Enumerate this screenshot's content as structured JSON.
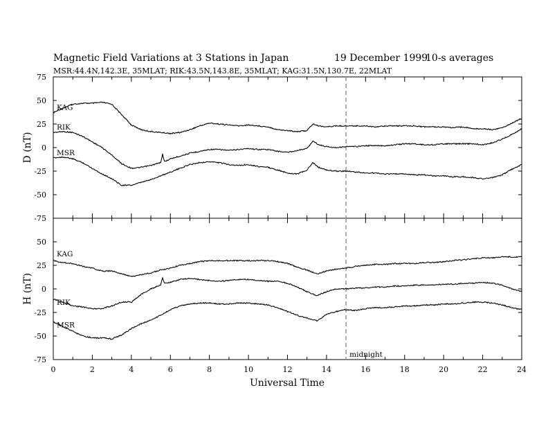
{
  "header": {
    "title": "Magnetic Field Variations at 3 Stations in Japan",
    "date": "19  December 1999",
    "averages": "10-s averages",
    "stations_line": "MSR:44.4N,142.3E, 35MLAT;   RIK:43.5N,143.8E, 35MLAT;   KAG:31.5N,130.7E, 22MLAT"
  },
  "chart_data": [
    {
      "type": "line",
      "panel": "D",
      "ylabel": "D  (nT)",
      "ylim": [
        -75,
        75
      ],
      "yticks": [
        -75,
        -50,
        -25,
        0,
        25,
        50,
        75
      ],
      "xlim": [
        0,
        24
      ],
      "grid": false,
      "series": [
        {
          "name": "KAG",
          "x": [
            0,
            0.5,
            1,
            1.5,
            2,
            2.5,
            3,
            3.5,
            4,
            4.5,
            5,
            5.5,
            6,
            6.5,
            7,
            7.5,
            8,
            8.5,
            9,
            9.5,
            10,
            10.5,
            11,
            11.5,
            12,
            12.5,
            13,
            13.3,
            13.6,
            14,
            14.5,
            15,
            15.5,
            16,
            16.5,
            17,
            17.5,
            18,
            18.5,
            19,
            19.5,
            20,
            20.5,
            21,
            21.5,
            22,
            22.5,
            23,
            23.5,
            24
          ],
          "y": [
            37,
            42,
            46,
            47,
            47,
            48,
            46,
            35,
            24,
            19,
            17,
            16,
            15,
            16,
            19,
            23,
            26,
            25,
            24,
            23,
            24,
            23,
            22,
            19,
            18,
            17,
            18,
            25,
            23,
            22,
            23,
            23,
            23,
            23,
            22,
            23,
            23,
            23,
            23,
            22,
            22,
            22,
            21,
            22,
            20,
            20,
            19,
            21,
            26,
            31
          ]
        },
        {
          "name": "RIK",
          "x": [
            0,
            0.5,
            1,
            1.5,
            2,
            2.5,
            3,
            3.5,
            4,
            4.5,
            5,
            5.5,
            5.6,
            5.7,
            6,
            6.5,
            7,
            7.5,
            8,
            8.5,
            9,
            9.5,
            10,
            10.5,
            11,
            11.5,
            12,
            12.5,
            13,
            13.3,
            13.6,
            14,
            14.5,
            15,
            15.5,
            16,
            16.5,
            17,
            17.5,
            18,
            18.5,
            19,
            19.5,
            20,
            20.5,
            21,
            21.5,
            22,
            22.5,
            23,
            23.5,
            24
          ],
          "y": [
            16,
            17,
            16,
            12,
            6,
            0,
            -8,
            -17,
            -22,
            -21,
            -19,
            -16,
            -7,
            -15,
            -12,
            -9,
            -6,
            -4,
            -2,
            -2,
            -3,
            -2,
            -1,
            -2,
            -2,
            -4,
            -5,
            -3,
            -1,
            7,
            3,
            1,
            0,
            1,
            1,
            2,
            2,
            2,
            3,
            4,
            4,
            3,
            3,
            4,
            4,
            4,
            4,
            3,
            5,
            9,
            14,
            20
          ]
        },
        {
          "name": "MSR",
          "x": [
            0,
            0.5,
            1,
            1.5,
            2,
            2.5,
            3,
            3.5,
            4,
            4.5,
            5,
            5.5,
            6,
            6.5,
            7,
            7.5,
            8,
            8.5,
            9,
            9.5,
            10,
            10.5,
            11,
            11.5,
            12,
            12.5,
            13,
            13.3,
            13.6,
            14,
            14.5,
            15,
            15.5,
            16,
            16.5,
            17,
            17.5,
            18,
            18.5,
            19,
            19.5,
            20,
            20.5,
            21,
            21.5,
            22,
            22.5,
            23,
            23.5,
            24
          ],
          "y": [
            -11,
            -10,
            -12,
            -16,
            -22,
            -28,
            -33,
            -40,
            -40,
            -37,
            -34,
            -30,
            -26,
            -22,
            -18,
            -16,
            -15,
            -16,
            -18,
            -19,
            -18,
            -20,
            -21,
            -24,
            -27,
            -28,
            -24,
            -16,
            -21,
            -24,
            -25,
            -25,
            -26,
            -27,
            -27,
            -28,
            -28,
            -28,
            -29,
            -29,
            -30,
            -30,
            -31,
            -31,
            -32,
            -33,
            -32,
            -29,
            -23,
            -18
          ]
        }
      ],
      "annotations": []
    },
    {
      "type": "line",
      "panel": "H",
      "ylabel": "H  (nT)",
      "xlabel": "Universal Time",
      "ylim": [
        -75,
        75
      ],
      "yticks": [
        -75,
        -50,
        -25,
        0,
        25,
        50,
        75
      ],
      "xlim": [
        0,
        24
      ],
      "xticks": [
        0,
        2,
        4,
        6,
        8,
        10,
        12,
        14,
        16,
        18,
        20,
        22,
        24
      ],
      "grid": false,
      "series": [
        {
          "name": "KAG",
          "x": [
            0,
            0.5,
            1,
            1.5,
            2,
            2.5,
            3,
            3.5,
            4,
            4.5,
            5,
            5.5,
            6,
            6.5,
            7,
            7.5,
            8,
            8.5,
            9,
            9.5,
            10,
            10.5,
            11,
            11.5,
            12,
            12.5,
            13,
            13.5,
            14,
            14.5,
            15,
            15.5,
            16,
            16.5,
            17,
            17.5,
            18,
            18.5,
            19,
            19.5,
            20,
            20.5,
            21,
            21.5,
            22,
            22.5,
            23,
            23.5,
            24
          ],
          "y": [
            30,
            28,
            27,
            24,
            22,
            19,
            19,
            16,
            13,
            15,
            17,
            20,
            22,
            25,
            27,
            29,
            30,
            30,
            30,
            30,
            30,
            30,
            30,
            29,
            27,
            23,
            20,
            16,
            19,
            21,
            22,
            24,
            25,
            26,
            26,
            27,
            27,
            27,
            28,
            28,
            29,
            30,
            31,
            32,
            33,
            33,
            34,
            34,
            34
          ]
        },
        {
          "name": "RIK",
          "x": [
            0,
            0.5,
            1,
            1.5,
            2,
            2.5,
            3,
            3.5,
            4,
            4.5,
            5,
            5.5,
            5.6,
            5.7,
            6,
            6.5,
            7,
            7.5,
            8,
            8.5,
            9,
            9.5,
            10,
            10.5,
            11,
            11.5,
            12,
            12.5,
            13,
            13.5,
            14,
            14.5,
            15,
            15.5,
            16,
            16.5,
            17,
            17.5,
            18,
            18.5,
            19,
            19.5,
            20,
            20.5,
            21,
            21.5,
            22,
            22.5,
            23,
            23.5,
            24
          ],
          "y": [
            -11,
            -14,
            -18,
            -19,
            -21,
            -21,
            -18,
            -14,
            -14,
            -6,
            0,
            4,
            12,
            6,
            7,
            10,
            11,
            10,
            9,
            8,
            9,
            10,
            10,
            9,
            8,
            8,
            6,
            2,
            -3,
            -7,
            -3,
            0,
            0,
            1,
            1,
            2,
            2,
            3,
            3,
            4,
            4,
            4,
            5,
            5,
            6,
            6,
            7,
            6,
            4,
            0,
            -3
          ]
        },
        {
          "name": "MSR",
          "x": [
            0,
            0.5,
            1,
            1.5,
            2,
            2.5,
            3,
            3.5,
            4,
            4.5,
            5,
            5.5,
            6,
            6.5,
            7,
            7.5,
            8,
            8.5,
            9,
            9.5,
            10,
            10.5,
            11,
            11.5,
            12,
            12.5,
            13,
            13.5,
            14,
            14.5,
            15,
            15.5,
            16,
            16.5,
            17,
            17.5,
            18,
            18.5,
            19,
            19.5,
            20,
            20.5,
            21,
            21.5,
            22,
            22.5,
            23,
            23.5,
            24
          ],
          "y": [
            -35,
            -40,
            -45,
            -50,
            -52,
            -52,
            -53,
            -49,
            -42,
            -37,
            -33,
            -28,
            -22,
            -18,
            -16,
            -15,
            -15,
            -16,
            -16,
            -15,
            -15,
            -16,
            -17,
            -20,
            -24,
            -28,
            -31,
            -34,
            -27,
            -24,
            -22,
            -23,
            -21,
            -20,
            -20,
            -19,
            -18,
            -18,
            -17,
            -17,
            -16,
            -16,
            -15,
            -14,
            -14,
            -15,
            -17,
            -20,
            -22
          ]
        }
      ],
      "annotations": [
        {
          "x": 15,
          "text": "midnight"
        }
      ]
    }
  ]
}
